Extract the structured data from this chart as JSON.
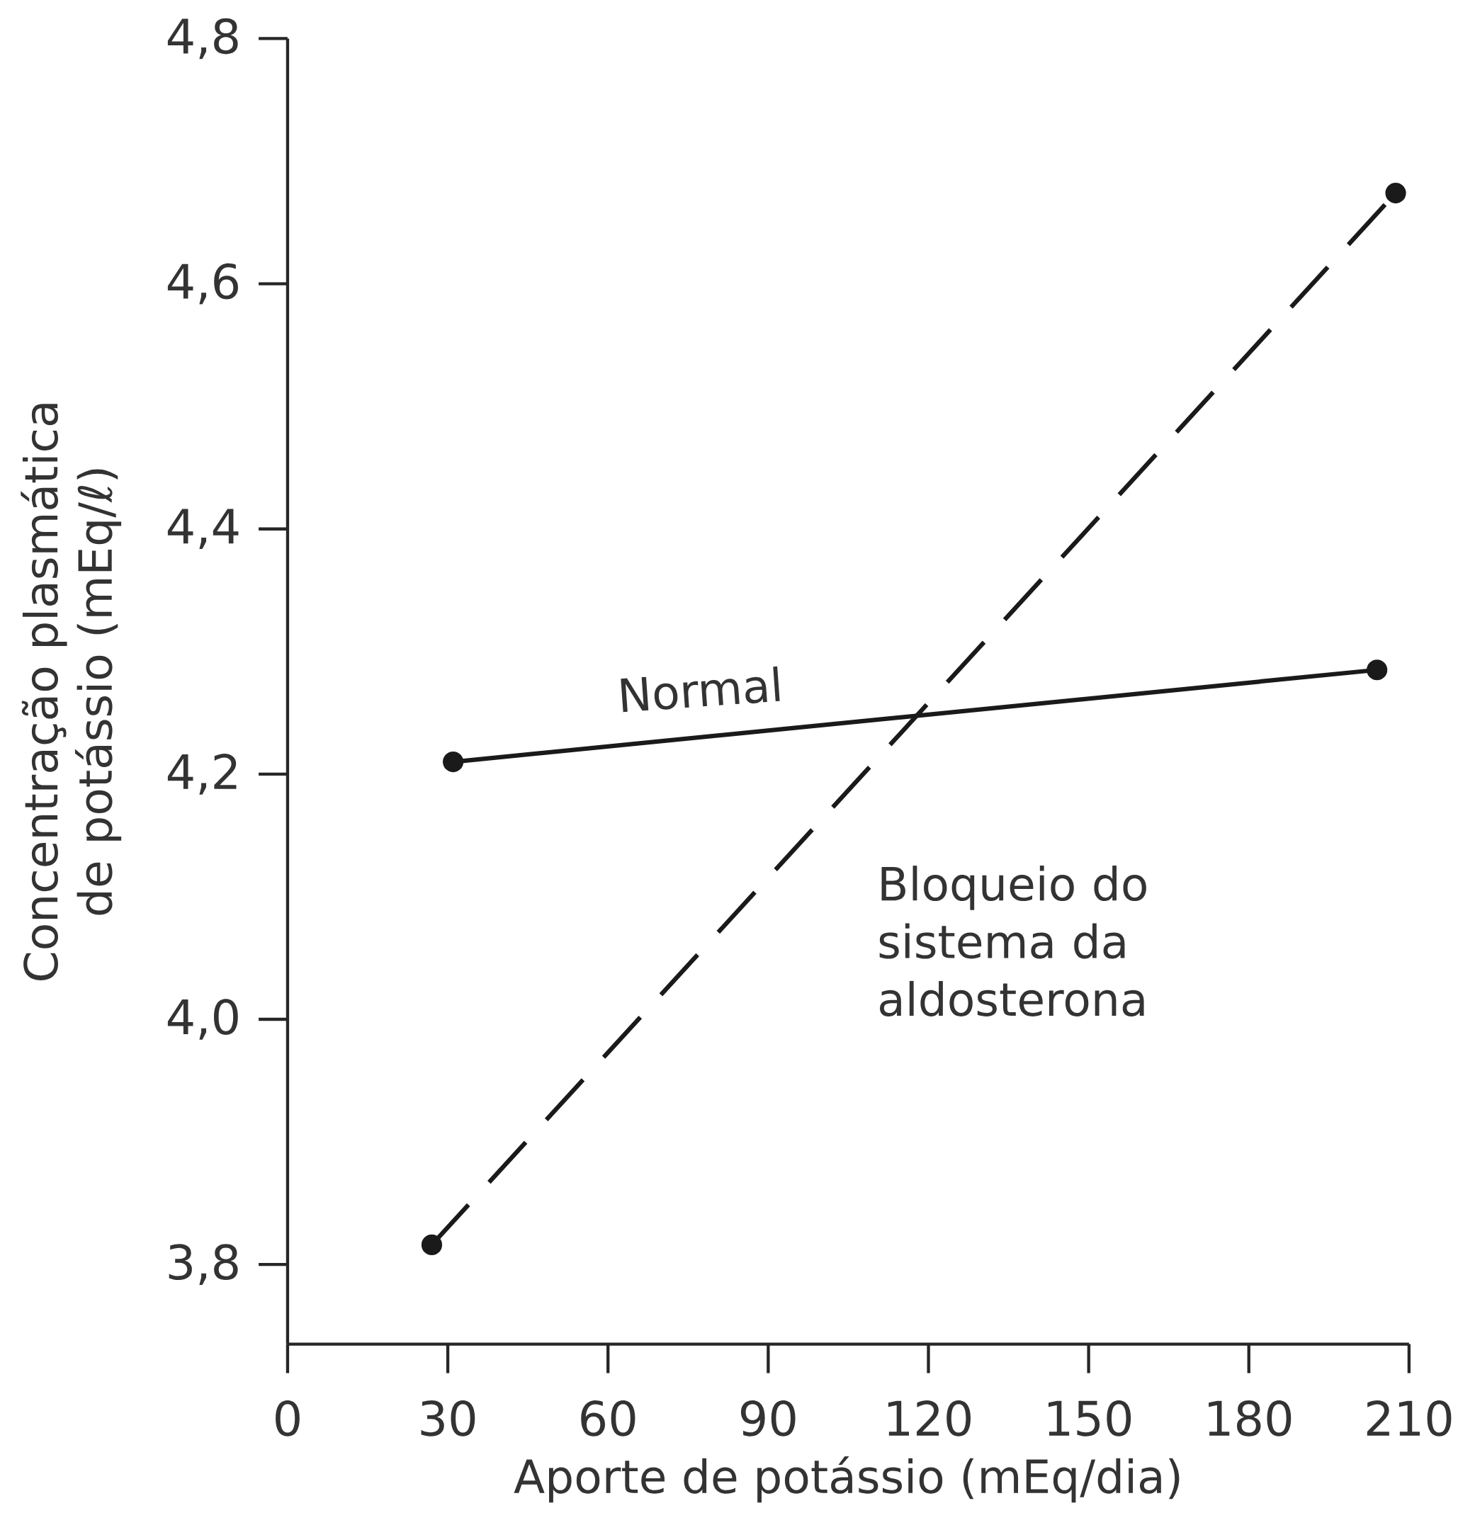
{
  "chart_data": {
    "type": "line",
    "xlabel": "Aporte de potássio (mEq/dia)",
    "ylabel": "Concentração plasmática de potássio (mEq/ℓ)",
    "xlim": [
      0,
      210
    ],
    "xticks": [
      0,
      30,
      60,
      90,
      120,
      150,
      180,
      210
    ],
    "ylim": [
      3.735,
      4.8
    ],
    "yticks": [
      {
        "value": 3.8,
        "label": "3,8"
      },
      {
        "value": 4.0,
        "label": "4,0"
      },
      {
        "value": 4.2,
        "label": "4,2"
      },
      {
        "value": 4.4,
        "label": "4,4"
      },
      {
        "value": 4.6,
        "label": "4,6"
      },
      {
        "value": 4.8,
        "label": "4,8"
      }
    ],
    "grid": false,
    "legend": false,
    "marker": "circle",
    "series": [
      {
        "name": "Normal",
        "color": "#1a1a1a",
        "line_style": "solid",
        "x": [
          31,
          204
        ],
        "values": [
          4.21,
          4.285
        ]
      },
      {
        "name": "Bloqueio do sistema da aldosterona",
        "color": "#1a1a1a",
        "line_style": "dashed",
        "x": [
          27,
          207.5
        ],
        "values": [
          3.816,
          4.674
        ]
      }
    ]
  }
}
